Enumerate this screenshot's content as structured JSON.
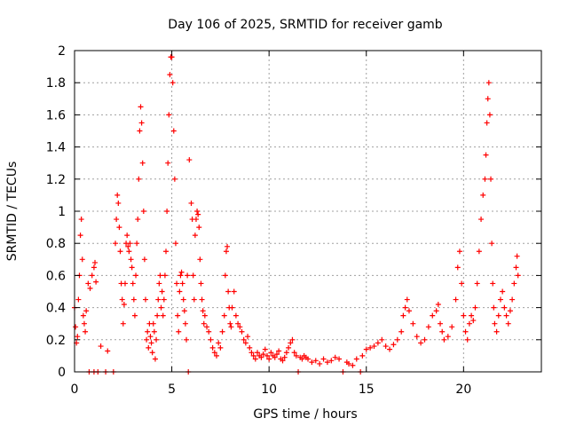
{
  "chart_data": {
    "type": "scatter",
    "title": "Day 106 of 2025, SRMTID for receiver gamb",
    "xlabel": "GPS time / hours",
    "ylabel": "SRMTID / TECUs",
    "xlim": [
      0,
      24
    ],
    "ylim": [
      0,
      2
    ],
    "xticks": [
      "0",
      "5",
      "10",
      "15",
      "20"
    ],
    "yticks": [
      "0",
      "0.2",
      "0.4",
      "0.6",
      "0.8",
      "1",
      "1.2",
      "1.4",
      "1.6",
      "1.8",
      "2"
    ],
    "grid": true,
    "marker": "plus",
    "color": "#ff0000",
    "series": [
      {
        "name": "SRMTID",
        "points": [
          [
            0.0,
            0.4
          ],
          [
            0.05,
            0.28
          ],
          [
            0.1,
            0.18
          ],
          [
            0.15,
            0.22
          ],
          [
            0.2,
            0.45
          ],
          [
            0.25,
            0.6
          ],
          [
            0.3,
            0.85
          ],
          [
            0.35,
            0.95
          ],
          [
            0.4,
            0.7
          ],
          [
            0.45,
            0.35
          ],
          [
            0.5,
            0.3
          ],
          [
            0.55,
            0.25
          ],
          [
            0.6,
            0.38
          ],
          [
            0.7,
            0.55
          ],
          [
            0.8,
            0.52
          ],
          [
            0.9,
            0.6
          ],
          [
            1.0,
            0.65
          ],
          [
            1.05,
            0.68
          ],
          [
            1.1,
            0.56
          ],
          [
            0.75,
            0.0
          ],
          [
            1.0,
            0.0
          ],
          [
            1.2,
            0.0
          ],
          [
            1.35,
            0.16
          ],
          [
            1.6,
            0.0
          ],
          [
            1.7,
            0.13
          ],
          [
            2.0,
            0.0
          ],
          [
            2.1,
            0.8
          ],
          [
            2.15,
            0.95
          ],
          [
            2.2,
            1.1
          ],
          [
            2.25,
            1.05
          ],
          [
            2.3,
            0.9
          ],
          [
            2.35,
            0.75
          ],
          [
            2.4,
            0.55
          ],
          [
            2.45,
            0.45
          ],
          [
            2.5,
            0.3
          ],
          [
            2.55,
            0.42
          ],
          [
            2.6,
            0.55
          ],
          [
            2.65,
            0.8
          ],
          [
            2.7,
            0.85
          ],
          [
            2.75,
            0.78
          ],
          [
            2.8,
            0.75
          ],
          [
            2.85,
            0.8
          ],
          [
            2.9,
            0.7
          ],
          [
            2.95,
            0.65
          ],
          [
            3.0,
            0.55
          ],
          [
            3.05,
            0.45
          ],
          [
            3.1,
            0.35
          ],
          [
            3.15,
            0.6
          ],
          [
            3.2,
            0.8
          ],
          [
            3.25,
            0.95
          ],
          [
            3.3,
            1.2
          ],
          [
            3.35,
            1.5
          ],
          [
            3.4,
            1.65
          ],
          [
            3.45,
            1.55
          ],
          [
            3.5,
            1.3
          ],
          [
            3.55,
            1.0
          ],
          [
            3.6,
            0.7
          ],
          [
            3.65,
            0.45
          ],
          [
            3.7,
            0.2
          ],
          [
            3.75,
            0.25
          ],
          [
            3.8,
            0.15
          ],
          [
            3.85,
            0.3
          ],
          [
            3.9,
            0.22
          ],
          [
            3.95,
            0.18
          ],
          [
            4.0,
            0.12
          ],
          [
            4.05,
            0.3
          ],
          [
            4.1,
            0.25
          ],
          [
            4.15,
            0.08
          ],
          [
            4.2,
            0.2
          ],
          [
            4.25,
            0.35
          ],
          [
            4.3,
            0.45
          ],
          [
            4.35,
            0.55
          ],
          [
            4.4,
            0.6
          ],
          [
            4.45,
            0.4
          ],
          [
            4.5,
            0.5
          ],
          [
            4.55,
            0.35
          ],
          [
            4.6,
            0.45
          ],
          [
            4.65,
            0.6
          ],
          [
            4.7,
            0.75
          ],
          [
            4.75,
            1.0
          ],
          [
            4.8,
            1.3
          ],
          [
            4.85,
            1.6
          ],
          [
            4.9,
            1.85
          ],
          [
            4.95,
            1.96
          ],
          [
            5.0,
            1.96
          ],
          [
            5.05,
            1.8
          ],
          [
            5.1,
            1.5
          ],
          [
            5.15,
            1.2
          ],
          [
            5.2,
            0.8
          ],
          [
            5.25,
            0.55
          ],
          [
            5.3,
            0.35
          ],
          [
            5.35,
            0.25
          ],
          [
            5.4,
            0.5
          ],
          [
            5.45,
            0.6
          ],
          [
            5.5,
            0.62
          ],
          [
            5.55,
            0.55
          ],
          [
            5.6,
            0.45
          ],
          [
            5.65,
            0.38
          ],
          [
            5.7,
            0.3
          ],
          [
            5.75,
            0.2
          ],
          [
            5.8,
            0.6
          ],
          [
            5.85,
            0.0
          ],
          [
            5.9,
            1.32
          ],
          [
            6.0,
            1.05
          ],
          [
            6.05,
            0.95
          ],
          [
            6.1,
            0.6
          ],
          [
            6.15,
            0.45
          ],
          [
            6.2,
            0.85
          ],
          [
            6.25,
            0.95
          ],
          [
            6.3,
            1.0
          ],
          [
            6.35,
            0.98
          ],
          [
            6.4,
            0.9
          ],
          [
            6.45,
            0.7
          ],
          [
            6.5,
            0.55
          ],
          [
            6.55,
            0.45
          ],
          [
            6.6,
            0.38
          ],
          [
            6.65,
            0.3
          ],
          [
            6.7,
            0.35
          ],
          [
            6.8,
            0.28
          ],
          [
            6.9,
            0.25
          ],
          [
            7.0,
            0.2
          ],
          [
            7.1,
            0.15
          ],
          [
            7.2,
            0.12
          ],
          [
            7.3,
            0.1
          ],
          [
            7.4,
            0.18
          ],
          [
            7.5,
            0.15
          ],
          [
            7.6,
            0.25
          ],
          [
            7.7,
            0.35
          ],
          [
            7.75,
            0.6
          ],
          [
            7.8,
            0.75
          ],
          [
            7.85,
            0.78
          ],
          [
            7.9,
            0.5
          ],
          [
            7.95,
            0.4
          ],
          [
            8.0,
            0.3
          ],
          [
            8.05,
            0.28
          ],
          [
            8.1,
            0.4
          ],
          [
            8.2,
            0.5
          ],
          [
            8.3,
            0.35
          ],
          [
            8.4,
            0.3
          ],
          [
            8.5,
            0.28
          ],
          [
            8.6,
            0.25
          ],
          [
            8.7,
            0.2
          ],
          [
            8.8,
            0.18
          ],
          [
            8.9,
            0.22
          ],
          [
            9.0,
            0.15
          ],
          [
            9.1,
            0.12
          ],
          [
            9.2,
            0.1
          ],
          [
            9.3,
            0.08
          ],
          [
            9.4,
            0.12
          ],
          [
            9.5,
            0.1
          ],
          [
            9.6,
            0.09
          ],
          [
            9.7,
            0.11
          ],
          [
            9.8,
            0.14
          ],
          [
            9.9,
            0.1
          ],
          [
            10.0,
            0.08
          ],
          [
            10.1,
            0.12
          ],
          [
            10.2,
            0.1
          ],
          [
            10.3,
            0.09
          ],
          [
            10.4,
            0.11
          ],
          [
            10.5,
            0.13
          ],
          [
            10.6,
            0.08
          ],
          [
            10.7,
            0.07
          ],
          [
            10.8,
            0.09
          ],
          [
            10.9,
            0.12
          ],
          [
            11.0,
            0.15
          ],
          [
            11.1,
            0.18
          ],
          [
            11.2,
            0.2
          ],
          [
            11.3,
            0.12
          ],
          [
            11.4,
            0.1
          ],
          [
            11.5,
            0.0
          ],
          [
            11.6,
            0.09
          ],
          [
            11.7,
            0.08
          ],
          [
            11.8,
            0.1
          ],
          [
            11.9,
            0.09
          ],
          [
            12.0,
            0.08
          ],
          [
            12.2,
            0.06
          ],
          [
            12.4,
            0.07
          ],
          [
            12.6,
            0.05
          ],
          [
            12.8,
            0.08
          ],
          [
            13.0,
            0.06
          ],
          [
            13.2,
            0.07
          ],
          [
            13.4,
            0.09
          ],
          [
            13.6,
            0.08
          ],
          [
            13.8,
            0.0
          ],
          [
            14.0,
            0.06
          ],
          [
            14.1,
            0.05
          ],
          [
            14.3,
            0.04
          ],
          [
            14.5,
            0.08
          ],
          [
            14.7,
            0.0
          ],
          [
            14.8,
            0.1
          ],
          [
            15.0,
            0.14
          ],
          [
            15.2,
            0.15
          ],
          [
            15.4,
            0.16
          ],
          [
            15.6,
            0.18
          ],
          [
            15.8,
            0.2
          ],
          [
            16.0,
            0.16
          ],
          [
            16.2,
            0.14
          ],
          [
            16.4,
            0.17
          ],
          [
            16.6,
            0.2
          ],
          [
            16.8,
            0.25
          ],
          [
            16.9,
            0.35
          ],
          [
            17.0,
            0.4
          ],
          [
            17.1,
            0.45
          ],
          [
            17.2,
            0.38
          ],
          [
            17.4,
            0.3
          ],
          [
            17.6,
            0.22
          ],
          [
            17.8,
            0.18
          ],
          [
            18.0,
            0.2
          ],
          [
            18.2,
            0.28
          ],
          [
            18.4,
            0.35
          ],
          [
            18.6,
            0.38
          ],
          [
            18.7,
            0.42
          ],
          [
            18.8,
            0.3
          ],
          [
            18.9,
            0.25
          ],
          [
            19.0,
            0.2
          ],
          [
            19.2,
            0.22
          ],
          [
            19.4,
            0.28
          ],
          [
            19.6,
            0.45
          ],
          [
            19.7,
            0.65
          ],
          [
            19.8,
            0.75
          ],
          [
            19.9,
            0.55
          ],
          [
            20.0,
            0.35
          ],
          [
            20.1,
            0.25
          ],
          [
            20.2,
            0.2
          ],
          [
            20.3,
            0.3
          ],
          [
            20.4,
            0.35
          ],
          [
            20.5,
            0.32
          ],
          [
            20.6,
            0.4
          ],
          [
            20.7,
            0.55
          ],
          [
            20.8,
            0.75
          ],
          [
            20.9,
            0.95
          ],
          [
            21.0,
            1.1
          ],
          [
            21.1,
            1.2
          ],
          [
            21.15,
            1.35
          ],
          [
            21.2,
            1.55
          ],
          [
            21.25,
            1.7
          ],
          [
            21.3,
            1.8
          ],
          [
            21.35,
            1.6
          ],
          [
            21.4,
            1.2
          ],
          [
            21.45,
            0.8
          ],
          [
            21.5,
            0.55
          ],
          [
            21.55,
            0.4
          ],
          [
            21.6,
            0.3
          ],
          [
            21.7,
            0.25
          ],
          [
            21.8,
            0.35
          ],
          [
            21.9,
            0.45
          ],
          [
            22.0,
            0.5
          ],
          [
            22.1,
            0.4
          ],
          [
            22.2,
            0.35
          ],
          [
            22.3,
            0.3
          ],
          [
            22.4,
            0.38
          ],
          [
            22.5,
            0.45
          ],
          [
            22.6,
            0.55
          ],
          [
            22.7,
            0.65
          ],
          [
            22.75,
            0.72
          ],
          [
            22.8,
            0.6
          ]
        ]
      }
    ]
  }
}
